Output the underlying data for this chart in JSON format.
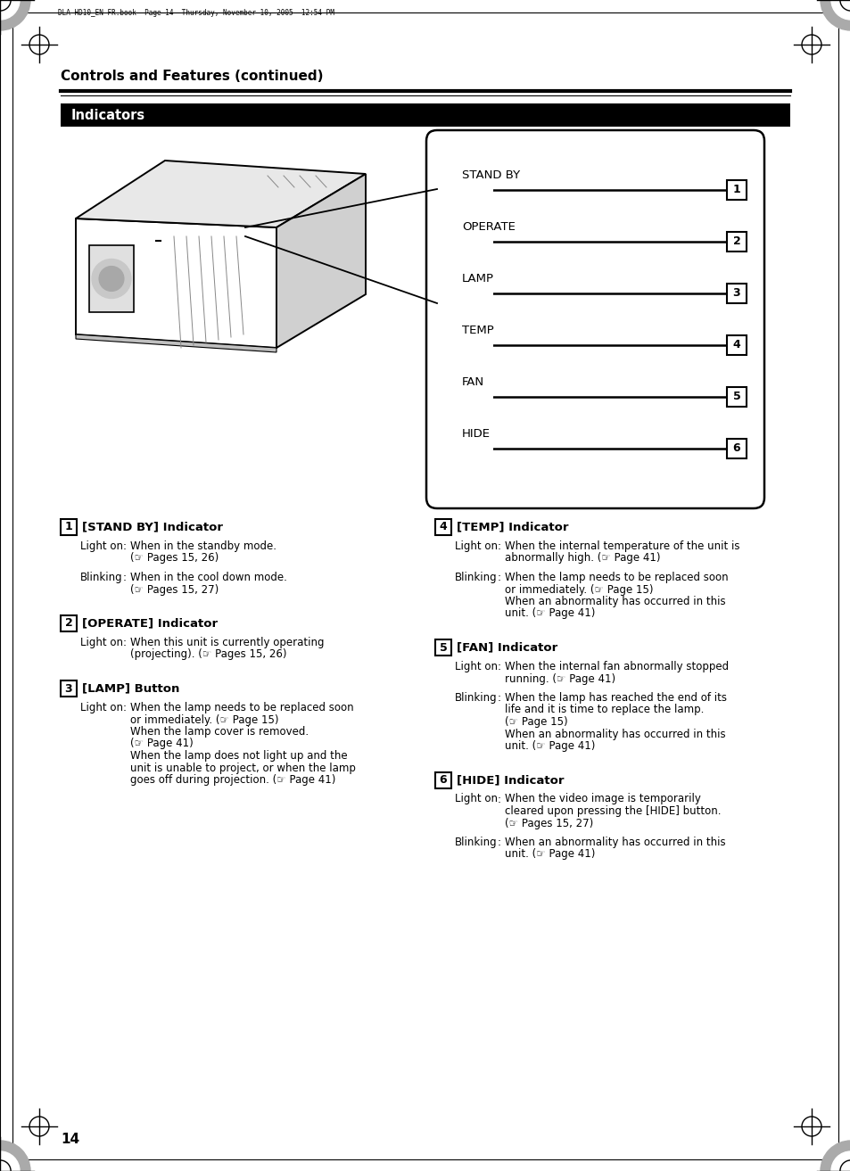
{
  "page_header": "DLA-HD10_EN-FR.book  Page 14  Thursday, November 10, 2005  12:54 PM",
  "section_title": "Controls and Features (continued)",
  "indicator_title": "Indicators",
  "indicators": [
    {
      "label": "STAND BY",
      "number": "1"
    },
    {
      "label": "OPERATE",
      "number": "2"
    },
    {
      "label": "LAMP",
      "number": "3"
    },
    {
      "label": "TEMP",
      "number": "4"
    },
    {
      "label": "FAN",
      "number": "5"
    },
    {
      "label": "HIDE",
      "number": "6"
    }
  ],
  "page_number": "14",
  "bg_color": "#ffffff",
  "text_color": "#000000",
  "header_bg": "#000000",
  "header_text": "#ffffff",
  "left_entries": [
    {
      "number": "1",
      "title": "[STAND BY] Indicator",
      "items": [
        {
          "label": "Light on",
          "text": "When in the standby mode.\n(☞ Pages 15, 26)"
        },
        {
          "label": "Blinking",
          "text": "When in the cool down mode.\n(☞ Pages 15, 27)"
        }
      ]
    },
    {
      "number": "2",
      "title": "[OPERATE] Indicator",
      "items": [
        {
          "label": "Light on",
          "text": "When this unit is currently operating\n(projecting). (☞ Pages 15, 26)"
        }
      ]
    },
    {
      "number": "3",
      "title": "[LAMP] Button",
      "items": [
        {
          "label": "Light on",
          "text": "When the lamp needs to be replaced soon\nor immediately. (☞ Page 15)\nWhen the lamp cover is removed.\n(☞ Page 41)\nWhen the lamp does not light up and the\nunit is unable to project, or when the lamp\ngoes off during projection. (☞ Page 41)"
        }
      ]
    }
  ],
  "right_entries": [
    {
      "number": "4",
      "title": "[TEMP] Indicator",
      "items": [
        {
          "label": "Light on",
          "text": "When the internal temperature of the unit is\nabnormally high. (☞ Page 41)"
        },
        {
          "label": "Blinking",
          "text": "When the lamp needs to be replaced soon\nor immediately. (☞ Page 15)\nWhen an abnormality has occurred in this\nunit. (☞ Page 41)"
        }
      ]
    },
    {
      "number": "5",
      "title": "[FAN] Indicator",
      "items": [
        {
          "label": "Light on",
          "text": "When the internal fan abnormally stopped\nrunning. (☞ Page 41)"
        },
        {
          "label": "Blinking",
          "text": "When the lamp has reached the end of its\nlife and it is time to replace the lamp.\n(☞ Page 15)\nWhen an abnormality has occurred in this\nunit. (☞ Page 41)"
        }
      ]
    },
    {
      "number": "6",
      "title": "[HIDE] Indicator",
      "items": [
        {
          "label": "Light on",
          "text": "When the video image is temporarily\ncleared upon pressing the [HIDE] button.\n(☞ Pages 15, 27)"
        },
        {
          "label": "Blinking",
          "text": "When an abnormality has occurred in this\nunit. (☞ Page 41)"
        }
      ]
    }
  ]
}
